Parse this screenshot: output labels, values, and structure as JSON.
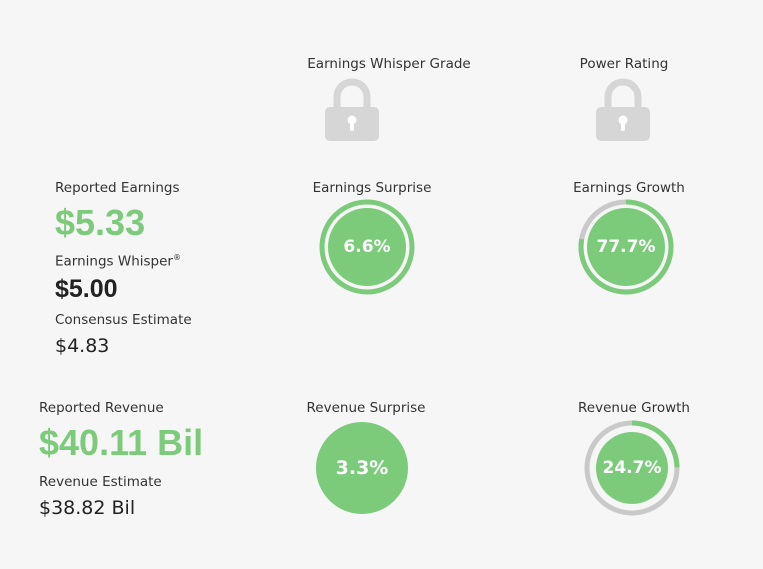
{
  "header": {
    "whisper_grade_label": "Earnings Whisper Grade",
    "power_rating_label": "Power Rating"
  },
  "icons": {
    "lock": "lock-icon"
  },
  "earnings": {
    "reported_label": "Reported Earnings",
    "reported_value": "$5.33",
    "whisper_label": "Earnings Whisper",
    "whisper_mark": "®",
    "whisper_value": "$5.00",
    "consensus_label": "Consensus Estimate",
    "consensus_value": "$4.83",
    "surprise_label": "Earnings Surprise",
    "surprise_value": "6.6%",
    "growth_label": "Earnings Growth",
    "growth_value": "77.7%",
    "growth_fraction": 0.777
  },
  "revenue": {
    "reported_label": "Reported Revenue",
    "reported_value": "$40.11 Bil",
    "estimate_label": "Revenue Estimate",
    "estimate_value": "$38.82 Bil",
    "surprise_label": "Revenue Surprise",
    "surprise_value": "3.3%",
    "growth_label": "Revenue Growth",
    "growth_value": "24.7%",
    "growth_fraction": 0.247
  },
  "colors": {
    "green": "#7bcb7a",
    "track": "#c9c9c9",
    "lock": "#d6d6d6"
  }
}
